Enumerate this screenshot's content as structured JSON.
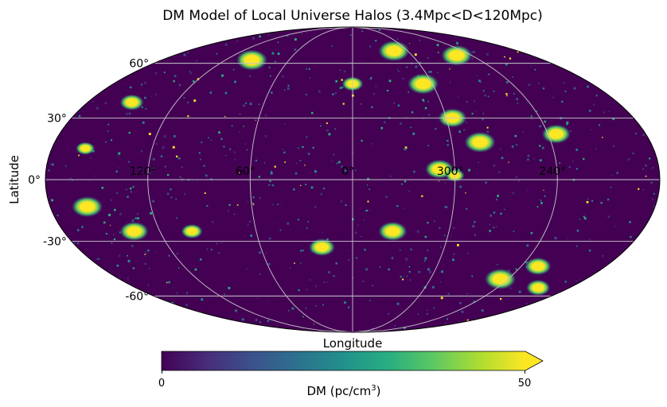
{
  "title": "DM Model of Local Universe Halos (3.4Mpc<D<120Mpc)",
  "axes": {
    "xlabel": "Longitude",
    "ylabel": "Latitude",
    "lon_ticks": [
      "120°",
      "60°",
      "0°",
      "300°",
      "240°"
    ],
    "lat_ticks": [
      "60°",
      "30°",
      "0°",
      "-30°",
      "-60°"
    ]
  },
  "colorbar": {
    "label_main": "DM (pc/cm",
    "label_exp": "3",
    "label_close": ")",
    "min_label": "0",
    "max_label": "50"
  },
  "chart_data": {
    "type": "heatmap",
    "projection": "mollweide",
    "colormap": "viridis",
    "extend": "max",
    "color_range": [
      0,
      50
    ],
    "lon_ticks_deg": [
      120,
      60,
      0,
      300,
      240
    ],
    "lat_ticks_deg": [
      60,
      30,
      0,
      -30,
      -60
    ],
    "background_color": "#440154",
    "saturated_color": "#fde725",
    "grid": true,
    "bright_halos": [
      {
        "lon": 315,
        "lat": 68,
        "strength": 50
      },
      {
        "lon": 307,
        "lat": 48,
        "strength": 50
      },
      {
        "lon": 283,
        "lat": 18,
        "strength": 50
      },
      {
        "lon": 296,
        "lat": 30,
        "strength": 45
      },
      {
        "lon": 255,
        "lat": 65,
        "strength": 50
      },
      {
        "lon": 235,
        "lat": 22,
        "strength": 45
      },
      {
        "lon": 309,
        "lat": 5,
        "strength": 45
      },
      {
        "lon": 95,
        "lat": 62,
        "strength": 50
      },
      {
        "lon": 150,
        "lat": 38,
        "strength": 35
      },
      {
        "lon": 160,
        "lat": 15,
        "strength": 25
      },
      {
        "lon": 158,
        "lat": -13,
        "strength": 50
      },
      {
        "lon": 136,
        "lat": -25,
        "strength": 45
      },
      {
        "lon": 100,
        "lat": -25,
        "strength": 30
      },
      {
        "lon": 335,
        "lat": -25,
        "strength": 45
      },
      {
        "lon": 246,
        "lat": -50,
        "strength": 50
      },
      {
        "lon": 228,
        "lat": -43,
        "strength": 40
      },
      {
        "lon": 206,
        "lat": -55,
        "strength": 35
      },
      {
        "lon": 300,
        "lat": 2,
        "strength": 25
      },
      {
        "lon": 0,
        "lat": 48,
        "strength": 30
      },
      {
        "lon": 20,
        "lat": -33,
        "strength": 40
      }
    ]
  }
}
